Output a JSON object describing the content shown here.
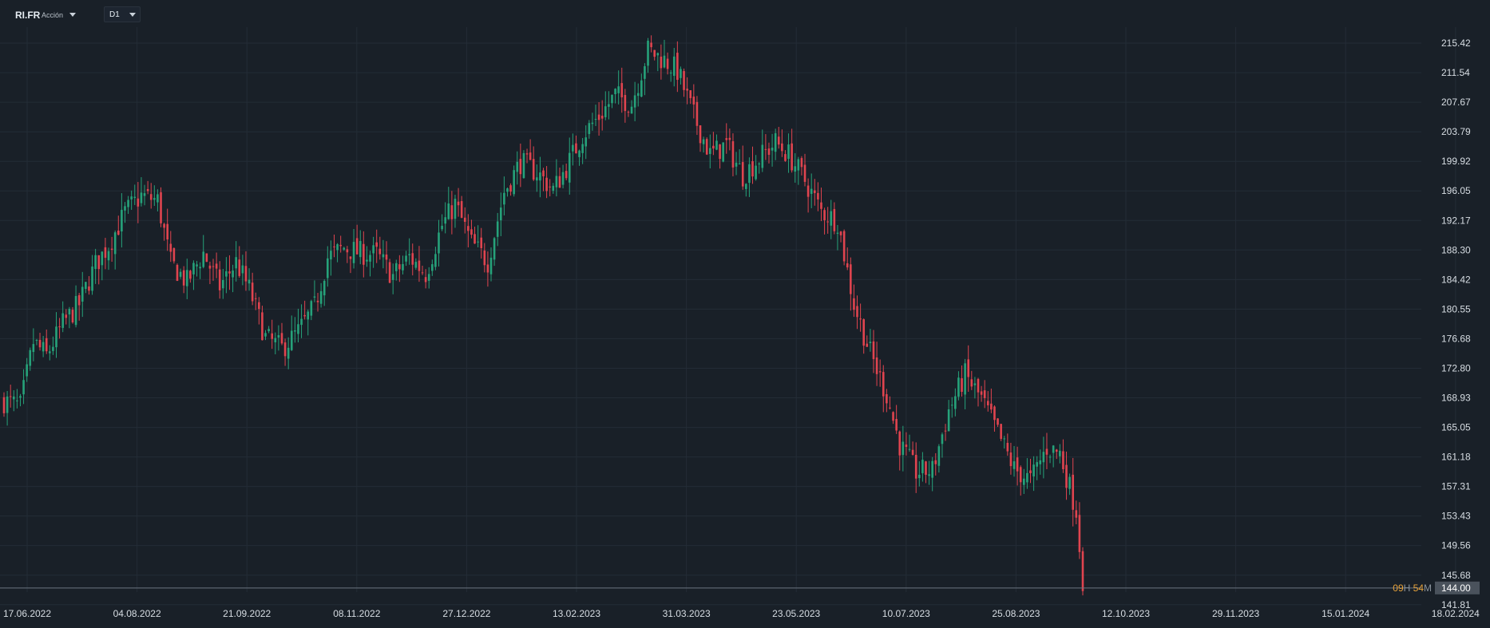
{
  "toolbar": {
    "symbol": "RI.FR",
    "instrument_type": "Acción",
    "timeframe": "D1"
  },
  "countdown": {
    "hours": "09",
    "h_label": "H",
    "minutes": "54",
    "m_label": "M"
  },
  "colors": {
    "background": "#192028",
    "grid": "#232c36",
    "up": "#26a27a",
    "down": "#e0444f",
    "axis_text": "#d7dde3",
    "countdown": "#e8a33a",
    "price_line": "#6b7480"
  },
  "chart_data": {
    "type": "candlestick",
    "grid": true,
    "y_ticks": [
      "215.42",
      "211.54",
      "207.67",
      "203.79",
      "199.92",
      "196.05",
      "192.17",
      "188.30",
      "184.42",
      "180.55",
      "176.68",
      "172.80",
      "168.93",
      "165.05",
      "161.18",
      "157.31",
      "153.43",
      "149.56",
      "145.68",
      "141.81"
    ],
    "x_ticks": [
      "17.06.2022",
      "04.08.2022",
      "21.09.2022",
      "08.11.2022",
      "27.12.2022",
      "13.02.2023",
      "31.03.2023",
      "23.05.2023",
      "10.07.2023",
      "25.08.2023",
      "12.10.2023",
      "29.11.2023",
      "15.01.2024",
      "18.02.2024"
    ],
    "ylim": [
      140.5,
      219.5
    ],
    "current_price": "144.00",
    "close_path": [
      [
        0,
        168.5
      ],
      [
        5,
        167.8
      ],
      [
        9,
        176.2
      ],
      [
        13,
        174.5
      ],
      [
        18,
        178.6
      ],
      [
        23,
        181.2
      ],
      [
        28,
        186.4
      ],
      [
        32,
        188.9
      ],
      [
        37,
        193.2
      ],
      [
        42,
        195.4
      ],
      [
        47,
        194.8
      ],
      [
        51,
        186.6
      ],
      [
        56,
        184.1
      ],
      [
        61,
        187.9
      ],
      [
        66,
        183.5
      ],
      [
        71,
        186.7
      ],
      [
        75,
        183.2
      ],
      [
        80,
        176.8
      ],
      [
        85,
        175.4
      ],
      [
        90,
        177.6
      ],
      [
        95,
        180.8
      ],
      [
        99,
        187.3
      ],
      [
        104,
        188.6
      ],
      [
        109,
        187.9
      ],
      [
        114,
        187.7
      ],
      [
        119,
        184.9
      ],
      [
        124,
        187.4
      ],
      [
        129,
        185.2
      ],
      [
        134,
        191.5
      ],
      [
        138,
        194.3
      ],
      [
        143,
        189.2
      ],
      [
        148,
        186.8
      ],
      [
        153,
        195.9
      ],
      [
        158,
        199.8
      ],
      [
        163,
        198.5
      ],
      [
        168,
        196.2
      ],
      [
        172,
        199.1
      ],
      [
        177,
        203.4
      ],
      [
        182,
        205.8
      ],
      [
        187,
        208.6
      ],
      [
        192,
        207.5
      ],
      [
        197,
        214.5
      ],
      [
        202,
        213.2
      ],
      [
        206,
        211.8
      ],
      [
        211,
        205.9
      ],
      [
        216,
        200.8
      ],
      [
        221,
        202.1
      ],
      [
        226,
        198.1
      ],
      [
        231,
        200.3
      ],
      [
        236,
        202.4
      ],
      [
        240,
        200.8
      ],
      [
        245,
        197.4
      ],
      [
        250,
        193.4
      ],
      [
        255,
        192.1
      ],
      [
        260,
        181.2
      ],
      [
        265,
        174.8
      ],
      [
        270,
        169.3
      ],
      [
        274,
        162.8
      ],
      [
        279,
        159.2
      ],
      [
        284,
        159.4
      ],
      [
        289,
        167.3
      ],
      [
        294,
        171.9
      ],
      [
        299,
        168.8
      ],
      [
        304,
        164.3
      ],
      [
        309,
        159.6
      ],
      [
        314,
        158.1
      ],
      [
        319,
        162.4
      ],
      [
        323,
        161.7
      ],
      [
        328,
        154.2
      ],
      [
        330,
        145.1
      ]
    ]
  }
}
